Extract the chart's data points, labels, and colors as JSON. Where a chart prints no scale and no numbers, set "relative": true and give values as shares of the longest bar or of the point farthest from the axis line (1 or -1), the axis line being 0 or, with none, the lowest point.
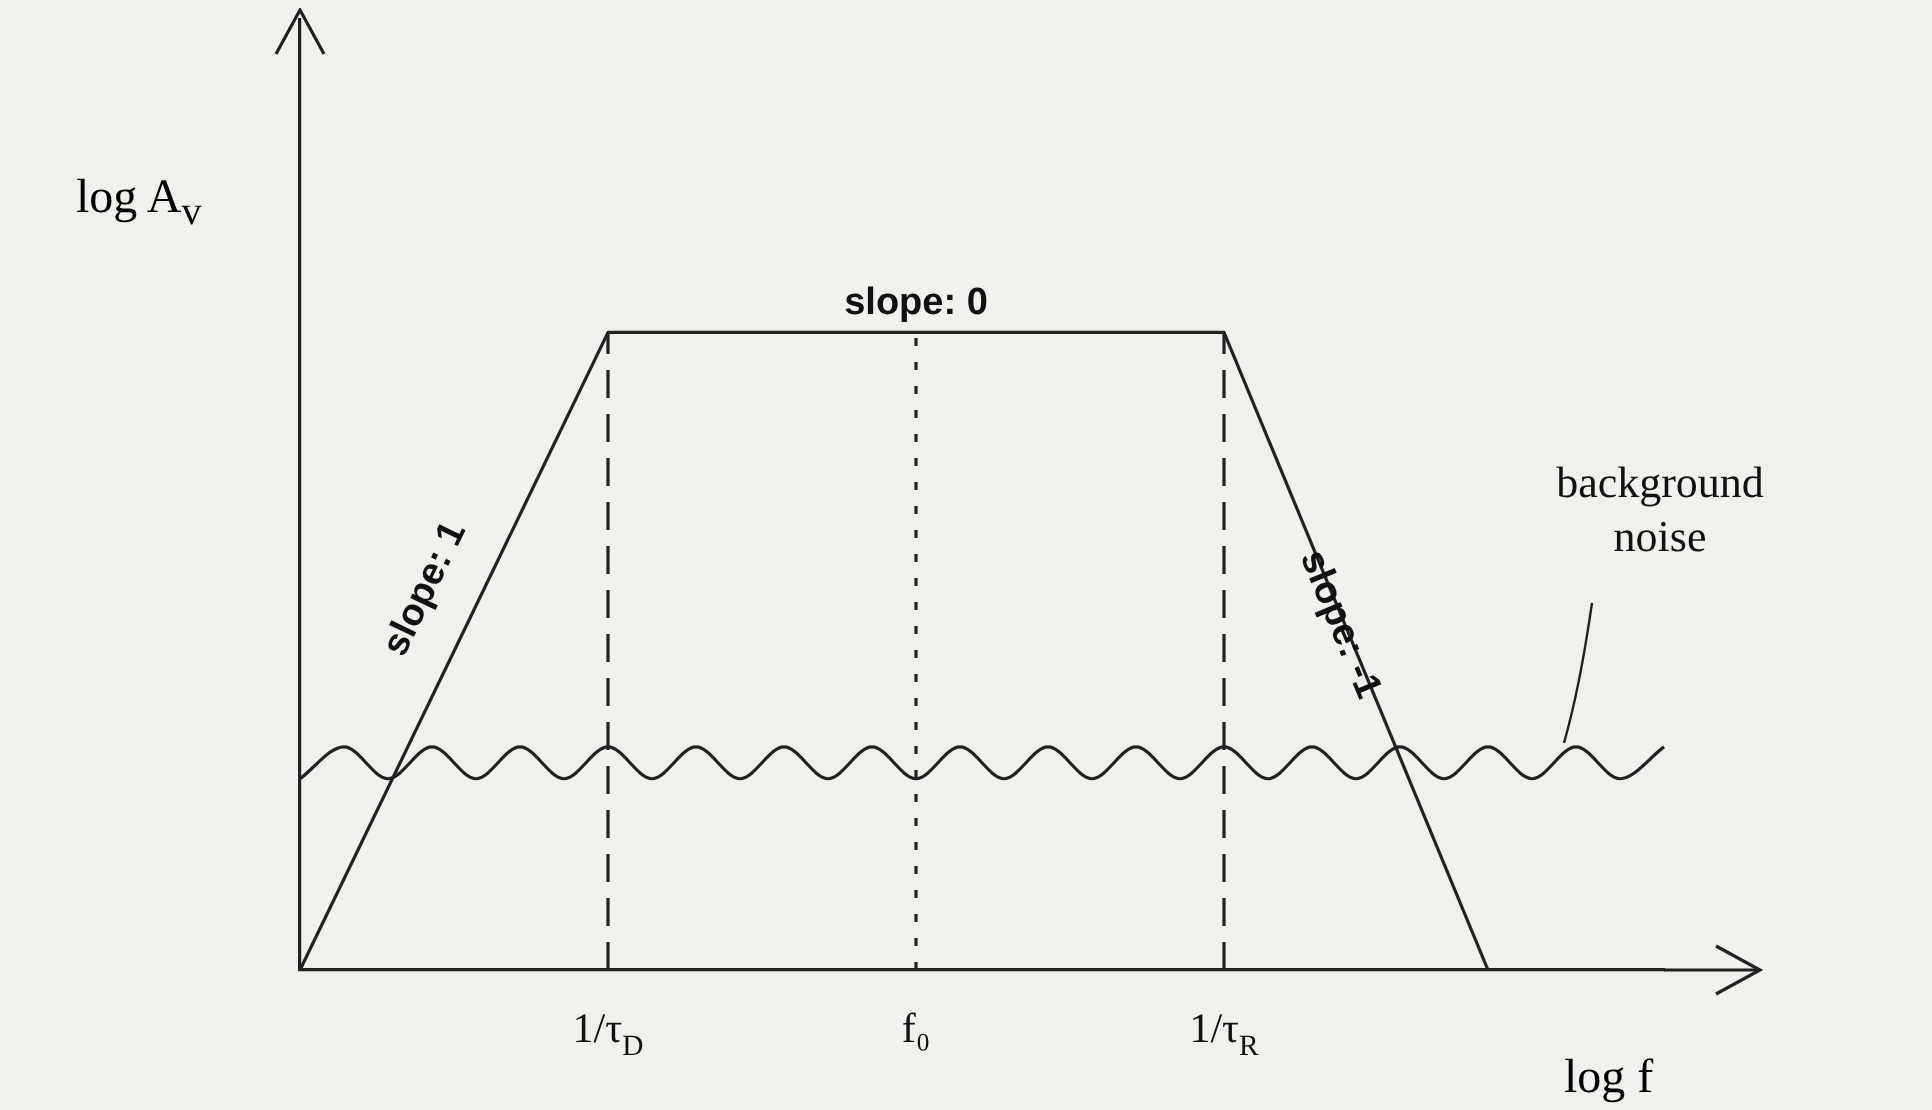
{
  "chart_data": {
    "type": "line",
    "relative": true,
    "xlabel": "log f",
    "ylabel": "log A$_{v}$",
    "categories": [
      null,
      null,
      null,
      null,
      null,
      null,
      null,
      "1/τ$_{D}$",
      null,
      null,
      null,
      null,
      null,
      null,
      "f₀",
      null,
      null,
      null,
      null,
      null,
      null,
      "1/τ$_{R}$",
      null,
      null,
      null,
      null,
      null,
      null,
      null,
      null,
      null,
      null
    ],
    "series": [
      {
        "color": "#222222",
        "values": [
          0,
          null,
          null,
          null,
          null,
          null,
          null,
          1,
          null,
          null,
          null,
          null,
          null,
          null,
          null,
          null,
          null,
          null,
          null,
          null,
          null,
          1,
          null,
          null,
          null,
          null,
          null,
          0,
          null,
          null,
          null,
          null
        ]
      },
      {
        "name": "background noise",
        "color": "#222222",
        "values": [
          0.3,
          0.35,
          0.3,
          0.35,
          0.3,
          0.35,
          0.3,
          0.35,
          0.3,
          0.35,
          0.3,
          0.35,
          0.3,
          0.35,
          0.3,
          0.35,
          0.3,
          0.35,
          0.3,
          0.35,
          0.3,
          0.35,
          0.3,
          0.35,
          0.3,
          0.35,
          0.3,
          0.35,
          0.3,
          0.35,
          0.3,
          0.35
        ]
      }
    ],
    "annotations": [
      "slope: 1",
      {
        "text": "slope: 0",
        "x": "f₀",
        "y": 1
      },
      "slope: -1"
    ],
    "ref_lines": [
      {
        "axis": "x",
        "value": "1/τ$_{D}$",
        "line_style": "dashed"
      },
      {
        "axis": "x",
        "value": "f₀",
        "line_style": "dotted"
      },
      {
        "axis": "x",
        "value": "1/τ$_{R}$",
        "line_style": "dashed"
      }
    ],
    "grid": false,
    "legend": false,
    "tick_labels": "x",
    "marker": "none",
    "line_style": "solid"
  }
}
